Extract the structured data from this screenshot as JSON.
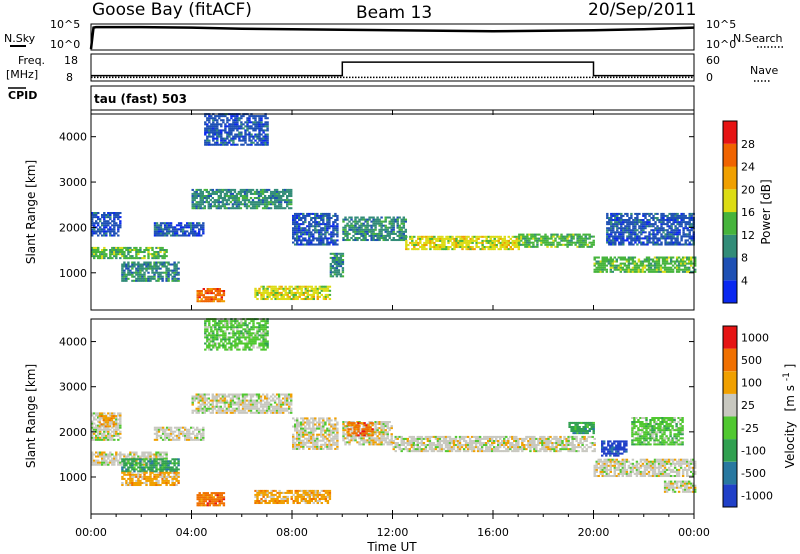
{
  "header": {
    "station": "Goose Bay (fitACF)",
    "beam": "Beam 13",
    "date": "20/Sep/2011"
  },
  "chart_data": [
    {
      "type": "line",
      "panel": "noise",
      "left_label": "N.Sky",
      "right_label": "N.Search",
      "yticks_left": [
        "10^5",
        "10^0"
      ],
      "yticks_right": [
        "10^5",
        "10^0"
      ],
      "x": [
        0,
        0.1,
        0.2,
        2,
        4,
        6,
        8,
        10,
        12,
        14,
        16,
        18,
        20,
        22,
        24
      ],
      "values": [
        0.2,
        4.3,
        4.4,
        4.4,
        4.3,
        4.1,
        4.0,
        3.9,
        3.8,
        3.7,
        3.6,
        3.7,
        3.8,
        4.0,
        4.3
      ]
    },
    {
      "type": "line",
      "panel": "frequency",
      "left_label_line1": "Freq.",
      "left_label_line2": "[MHz]",
      "right_label": "Nave",
      "cpid_label": "CPID",
      "yticks_left": [
        "18",
        "8"
      ],
      "yticks_right": [
        "60",
        "0"
      ],
      "freq_segments": [
        {
          "x": [
            0,
            10
          ],
          "value": 10
        },
        {
          "x": [
            10,
            20
          ],
          "value": 15
        },
        {
          "x": [
            20,
            24
          ],
          "value": 10
        }
      ],
      "nave_level": 8
    },
    {
      "type": "heatmap",
      "panel": "power",
      "cpid_text": "tau (fast) 503",
      "ylabel": "Slant Range [km]",
      "yticks": [
        "1000",
        "2000",
        "3000",
        "4000"
      ],
      "ylim": [
        180,
        4500
      ],
      "xlim": [
        0,
        24
      ],
      "colorbar": {
        "title": "Power [dB]",
        "tick_labels": [
          "4",
          "8",
          "12",
          "16",
          "20",
          "24",
          "28"
        ],
        "colors": [
          "#0a28f0",
          "#1e50b4",
          "#328c78",
          "#46b43c",
          "#dcdc14",
          "#f0a000",
          "#f06400",
          "#e61414"
        ]
      },
      "bands": [
        {
          "t0": 0.0,
          "t1": 1.2,
          "r0": 1800,
          "r1": 2300,
          "level": 1
        },
        {
          "t0": 0.0,
          "t1": 3.0,
          "r0": 1300,
          "r1": 1550,
          "level": 3
        },
        {
          "t0": 1.2,
          "t1": 3.5,
          "r0": 800,
          "r1": 1250,
          "level": 2
        },
        {
          "t0": 2.5,
          "t1": 4.5,
          "r0": 1800,
          "r1": 2100,
          "level": 1
        },
        {
          "t0": 4.0,
          "t1": 8.0,
          "r0": 2400,
          "r1": 2850,
          "level": 2
        },
        {
          "t0": 4.2,
          "t1": 5.3,
          "r0": 350,
          "r1": 650,
          "level": 6
        },
        {
          "t0": 6.5,
          "t1": 9.5,
          "r0": 400,
          "r1": 700,
          "level": 4
        },
        {
          "t0": 8.0,
          "t1": 9.8,
          "r0": 1600,
          "r1": 2300,
          "level": 1
        },
        {
          "t0": 10.0,
          "t1": 12.5,
          "r0": 1700,
          "r1": 2200,
          "level": 2
        },
        {
          "t0": 12.5,
          "t1": 17.0,
          "r0": 1500,
          "r1": 1800,
          "level": 4
        },
        {
          "t0": 17.0,
          "t1": 20.0,
          "r0": 1550,
          "r1": 1850,
          "level": 3
        },
        {
          "t0": 20.0,
          "t1": 24.0,
          "r0": 1000,
          "r1": 1350,
          "level": 3
        },
        {
          "t0": 20.5,
          "t1": 24.0,
          "r0": 1600,
          "r1": 2300,
          "level": 1
        },
        {
          "t0": 4.5,
          "t1": 7.0,
          "r0": 3800,
          "r1": 4500,
          "level": 1
        },
        {
          "t0": 9.5,
          "t1": 10.0,
          "r0": 900,
          "r1": 1400,
          "level": 2
        }
      ]
    },
    {
      "type": "heatmap",
      "panel": "velocity",
      "ylabel": "Slant Range [km]",
      "yticks": [
        "1000",
        "2000",
        "3000",
        "4000"
      ],
      "ylim": [
        180,
        4500
      ],
      "xlim": [
        0,
        24
      ],
      "xlabel": "Time UT",
      "xticks": [
        "00:00",
        "04:00",
        "08:00",
        "12:00",
        "16:00",
        "20:00",
        "00:00"
      ],
      "colorbar": {
        "title_main": "Velocity",
        "title_unit": "[m s",
        "title_exp": "-1",
        "title_close": "]",
        "tick_labels": [
          "1000",
          "500",
          "100",
          "25",
          "-25",
          "-100",
          "-500",
          "-1000"
        ],
        "colors": [
          "#2040c8",
          "#2878a0",
          "#30a050",
          "#50c830",
          "#c8c8c0",
          "#f0a000",
          "#f07000",
          "#e61414"
        ]
      },
      "bands": [
        {
          "t0": 0.0,
          "t1": 1.2,
          "r0": 1800,
          "r1": 2400,
          "level": 4
        },
        {
          "t0": 0.3,
          "t1": 1.0,
          "r0": 2100,
          "r1": 2350,
          "level": 5
        },
        {
          "t0": 0.0,
          "t1": 3.0,
          "r0": 1250,
          "r1": 1550,
          "level": 4
        },
        {
          "t0": 1.2,
          "t1": 3.5,
          "r0": 1100,
          "r1": 1400,
          "level": 2
        },
        {
          "t0": 1.2,
          "t1": 3.5,
          "r0": 800,
          "r1": 1100,
          "level": 5
        },
        {
          "t0": 2.5,
          "t1": 4.5,
          "r0": 1800,
          "r1": 2100,
          "level": 4
        },
        {
          "t0": 4.0,
          "t1": 8.0,
          "r0": 2400,
          "r1": 2850,
          "level": 4
        },
        {
          "t0": 4.2,
          "t1": 5.3,
          "r0": 350,
          "r1": 650,
          "level": 6
        },
        {
          "t0": 6.5,
          "t1": 9.5,
          "r0": 400,
          "r1": 700,
          "level": 5
        },
        {
          "t0": 8.0,
          "t1": 9.8,
          "r0": 1600,
          "r1": 2300,
          "level": 4
        },
        {
          "t0": 10.0,
          "t1": 12.0,
          "r0": 1700,
          "r1": 2200,
          "level": 4
        },
        {
          "t0": 10.2,
          "t1": 11.2,
          "r0": 1900,
          "r1": 2200,
          "level": 6
        },
        {
          "t0": 12.0,
          "t1": 20.0,
          "r0": 1550,
          "r1": 1900,
          "level": 4
        },
        {
          "t0": 19.0,
          "t1": 20.0,
          "r0": 1950,
          "r1": 2200,
          "level": 2
        },
        {
          "t0": 20.0,
          "t1": 24.0,
          "r0": 1000,
          "r1": 1400,
          "level": 4
        },
        {
          "t0": 20.3,
          "t1": 21.3,
          "r0": 1450,
          "r1": 1800,
          "level": 0
        },
        {
          "t0": 21.5,
          "t1": 23.5,
          "r0": 1700,
          "r1": 2300,
          "level": 3
        },
        {
          "t0": 22.8,
          "t1": 24.0,
          "r0": 650,
          "r1": 900,
          "level": 4
        },
        {
          "t0": 4.5,
          "t1": 7.0,
          "r0": 3800,
          "r1": 4500,
          "level": 3
        }
      ]
    }
  ]
}
